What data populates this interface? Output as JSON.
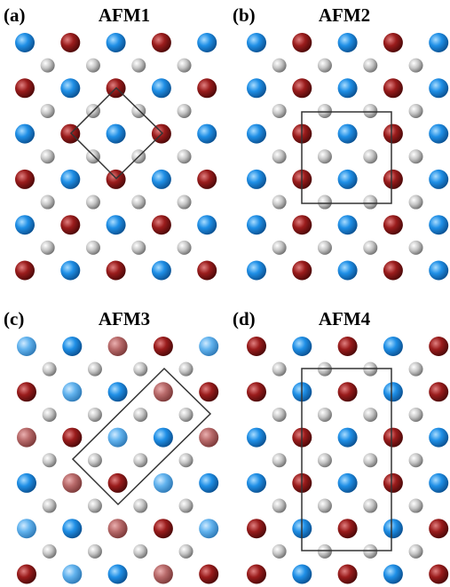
{
  "panels": [
    {
      "label": "(a)",
      "title": "AFM1"
    },
    {
      "label": "(b)",
      "title": "AFM2"
    },
    {
      "label": "(c)",
      "title": "AFM3"
    },
    {
      "label": "(d)",
      "title": "AFM4"
    }
  ]
}
